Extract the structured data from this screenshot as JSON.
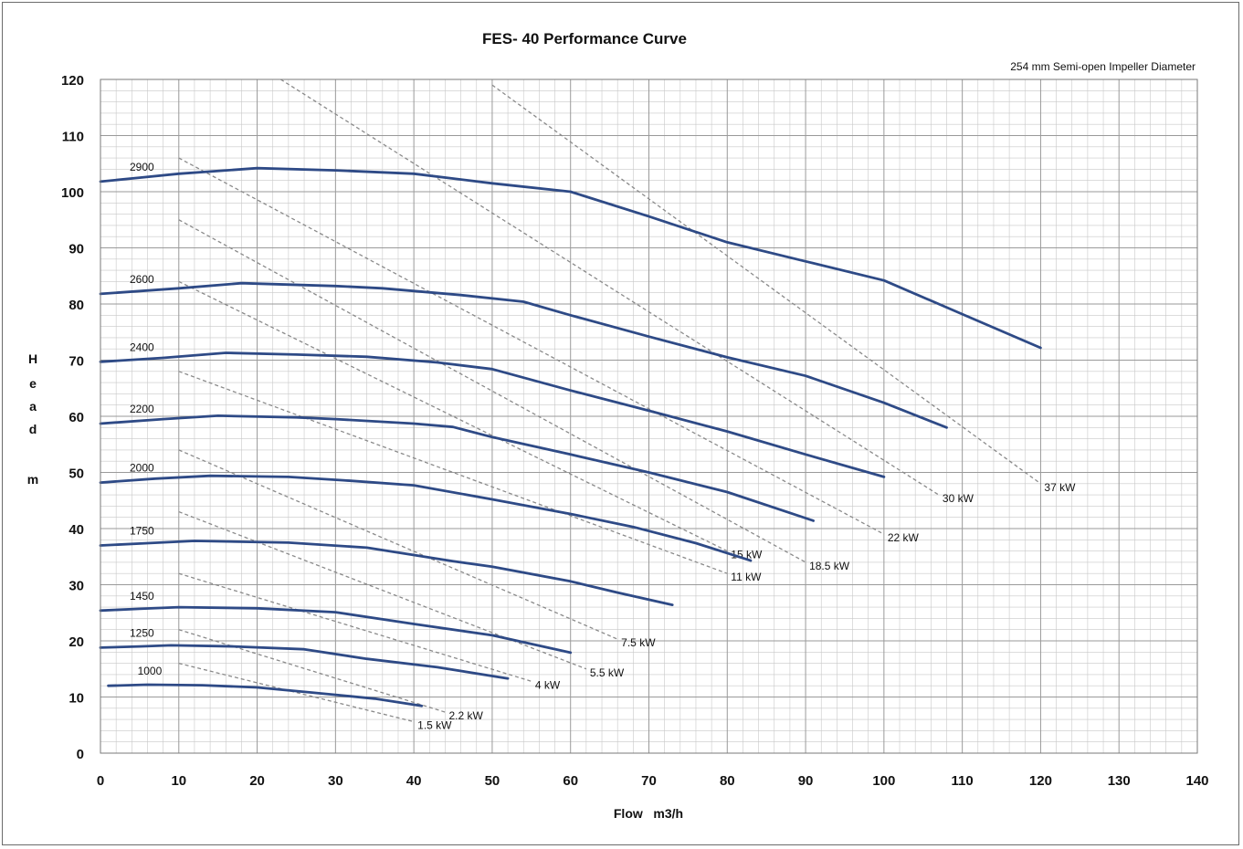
{
  "chart_data": {
    "type": "line",
    "title": "FES- 40 Performance Curve",
    "subtitle": "254 mm Semi-open Impeller Diameter",
    "xlabel": "Flow   m3/h",
    "ylabel": [
      "H",
      "e",
      "a",
      "d",
      "",
      "m"
    ],
    "xlim": [
      0,
      140
    ],
    "ylim": [
      0,
      120
    ],
    "x_ticks": [
      0,
      10,
      20,
      30,
      40,
      50,
      60,
      70,
      80,
      90,
      100,
      110,
      120,
      130,
      140
    ],
    "y_ticks": [
      0,
      10,
      20,
      30,
      40,
      50,
      60,
      70,
      80,
      90,
      100,
      110,
      120
    ],
    "grid": true,
    "speed_curves": [
      {
        "name": "2900",
        "x": [
          0,
          5,
          10,
          20,
          30,
          40,
          50,
          60,
          70,
          80,
          90,
          100,
          110,
          120
        ],
        "y": [
          101.8,
          102.5,
          103.2,
          104.2,
          103.8,
          103.2,
          101.5,
          100.0,
          95.6,
          91.0,
          87.6,
          84.2,
          78.2,
          72.2
        ]
      },
      {
        "name": "2600",
        "x": [
          0,
          10,
          18,
          30,
          36,
          46,
          54,
          60,
          70,
          80,
          90,
          100,
          108
        ],
        "y": [
          81.8,
          82.8,
          83.7,
          83.2,
          82.8,
          81.6,
          80.4,
          78.0,
          74.2,
          70.5,
          67.2,
          62.4,
          58.0
        ]
      },
      {
        "name": "2400",
        "x": [
          0,
          8,
          16,
          25,
          34,
          43,
          50,
          60,
          70,
          80,
          90,
          100
        ],
        "y": [
          69.7,
          70.4,
          71.3,
          71.0,
          70.6,
          69.6,
          68.4,
          64.6,
          61.0,
          57.3,
          53.2,
          49.2
        ]
      },
      {
        "name": "2200",
        "x": [
          0,
          8,
          15,
          25,
          30,
          40,
          45,
          50,
          60,
          70,
          80,
          91
        ],
        "y": [
          58.7,
          59.5,
          60.1,
          59.8,
          59.5,
          58.7,
          58.1,
          56.3,
          53.2,
          50.0,
          46.5,
          41.4
        ]
      },
      {
        "name": "2000",
        "x": [
          0,
          7,
          14,
          24,
          31,
          40,
          50,
          60,
          68,
          76,
          83
        ],
        "y": [
          48.2,
          48.9,
          49.4,
          49.2,
          48.6,
          47.7,
          45.2,
          42.6,
          40.3,
          37.4,
          34.3
        ]
      },
      {
        "name": "1750",
        "x": [
          0,
          6,
          12,
          24,
          34,
          45,
          50,
          60,
          66,
          73
        ],
        "y": [
          37.0,
          37.4,
          37.8,
          37.5,
          36.6,
          34.2,
          33.2,
          30.6,
          28.6,
          26.4
        ]
      },
      {
        "name": "1450",
        "x": [
          0,
          5,
          10,
          20,
          30,
          40,
          50,
          60
        ],
        "y": [
          25.4,
          25.7,
          26.0,
          25.8,
          25.1,
          23.0,
          21.0,
          17.9
        ]
      },
      {
        "name": "1250",
        "x": [
          0,
          5,
          9,
          17,
          26,
          34,
          43,
          52
        ],
        "y": [
          18.8,
          19.0,
          19.2,
          19.0,
          18.5,
          16.8,
          15.3,
          13.3
        ]
      },
      {
        "name": "1000",
        "x": [
          1,
          6,
          13,
          20,
          27,
          35,
          41
        ],
        "y": [
          12.0,
          12.2,
          12.1,
          11.7,
          10.8,
          9.7,
          8.4
        ]
      }
    ],
    "power_lines": [
      {
        "name": "1.5 kW",
        "x": [
          10,
          40
        ],
        "y": [
          16,
          5.6
        ]
      },
      {
        "name": "2.2 kW",
        "x": [
          10,
          44
        ],
        "y": [
          22,
          7.3
        ]
      },
      {
        "name": "4 kW",
        "x": [
          10,
          55
        ],
        "y": [
          32,
          12.8
        ]
      },
      {
        "name": "5.5 kW",
        "x": [
          10,
          62
        ],
        "y": [
          43,
          15
        ]
      },
      {
        "name": "7.5 kW",
        "x": [
          10,
          66
        ],
        "y": [
          54,
          20.3
        ]
      },
      {
        "name": "11 kW",
        "x": [
          10,
          80
        ],
        "y": [
          68,
          32
        ]
      },
      {
        "name": "15 kW",
        "x": [
          10,
          80
        ],
        "y": [
          84,
          36
        ]
      },
      {
        "name": "18.5 kW",
        "x": [
          10,
          90
        ],
        "y": [
          95,
          34
        ]
      },
      {
        "name": "22 kW",
        "x": [
          10,
          100
        ],
        "y": [
          106,
          39
        ]
      },
      {
        "name": "30 kW",
        "x": [
          23,
          107
        ],
        "y": [
          120,
          46
        ]
      },
      {
        "name": "37 kW",
        "x": [
          50,
          120
        ],
        "y": [
          119,
          48
        ]
      }
    ],
    "colors": {
      "curve": "#2e4a86",
      "power_line": "#8a8a8a",
      "grid_major": "#9a9a9a",
      "grid_minor": "#c8c8c8"
    }
  }
}
